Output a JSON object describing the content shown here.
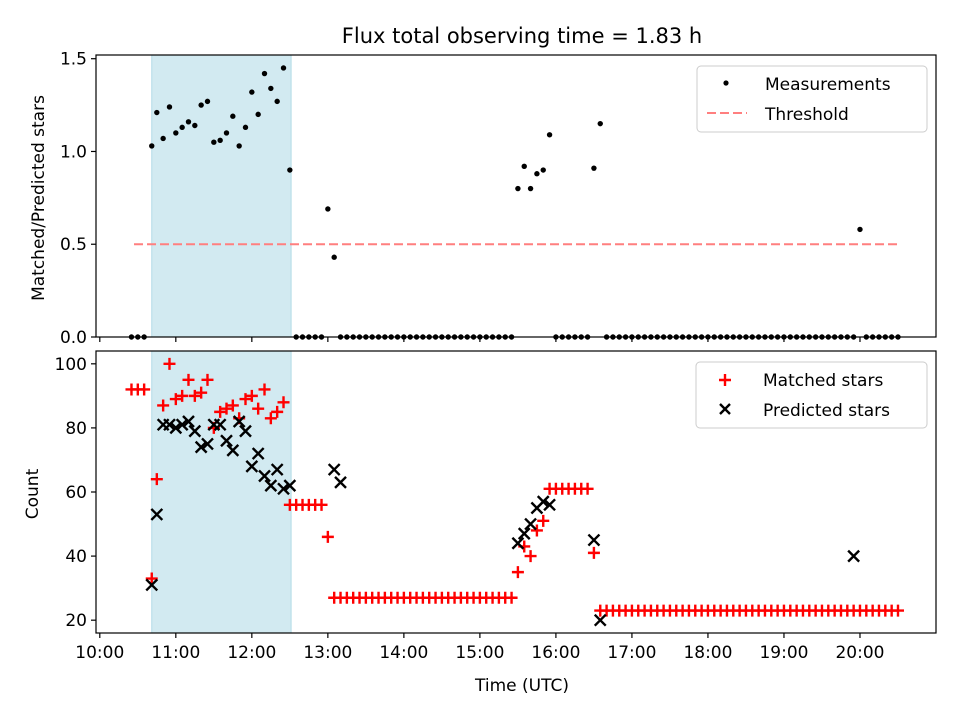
{
  "figure": {
    "title": "Flux total observing time = 1.83 h"
  },
  "chart_data": [
    {
      "type": "scatter",
      "ylabel": "Matched/Predicted stars",
      "xlabel": "",
      "x_ticks_visible": false,
      "ylim": [
        0,
        1.52
      ],
      "yticks": [
        0.0,
        0.5,
        1.0,
        1.5
      ],
      "ytick_labels": [
        "0.0",
        "0.5",
        "1.0",
        "1.5"
      ],
      "shaded_span": [
        "10:41",
        "12:31"
      ],
      "shaded_color": "#add8e6",
      "legend": {
        "position": "top-right",
        "entries": [
          "Measurements",
          "Threshold"
        ]
      },
      "threshold": {
        "name": "Threshold",
        "value": 0.5,
        "x_range": [
          "10:27",
          "20:30"
        ],
        "color": "#ff7f7f",
        "style": "dashed"
      },
      "series": [
        {
          "name": "Measurements",
          "color": "#000000",
          "marker": "dot",
          "x": [
            "10:25",
            "10:30",
            "10:35",
            "10:41",
            "10:45",
            "10:50",
            "10:55",
            "11:00",
            "11:05",
            "11:10",
            "11:15",
            "11:20",
            "11:25",
            "11:30",
            "11:35",
            "11:40",
            "11:45",
            "11:50",
            "11:55",
            "12:00",
            "12:05",
            "12:10",
            "12:15",
            "12:20",
            "12:25",
            "12:30",
            "12:35",
            "12:40",
            "12:45",
            "12:50",
            "12:55",
            "13:00",
            "13:05",
            "13:10",
            "13:15",
            "13:20",
            "13:25",
            "13:30",
            "13:35",
            "13:40",
            "13:45",
            "13:50",
            "13:55",
            "14:00",
            "14:05",
            "14:10",
            "14:15",
            "14:20",
            "14:25",
            "14:30",
            "14:35",
            "14:40",
            "14:45",
            "14:50",
            "14:55",
            "15:00",
            "15:05",
            "15:10",
            "15:15",
            "15:20",
            "15:25",
            "15:30",
            "15:35",
            "15:40",
            "15:45",
            "15:50",
            "15:55",
            "16:00",
            "16:05",
            "16:10",
            "16:15",
            "16:20",
            "16:25",
            "16:30",
            "16:35",
            "16:40",
            "16:45",
            "16:50",
            "16:55",
            "17:00",
            "17:05",
            "17:10",
            "17:15",
            "17:20",
            "17:25",
            "17:30",
            "17:35",
            "17:40",
            "17:45",
            "17:50",
            "17:55",
            "18:00",
            "18:05",
            "18:10",
            "18:15",
            "18:20",
            "18:25",
            "18:30",
            "18:35",
            "18:40",
            "18:45",
            "18:50",
            "18:55",
            "19:00",
            "19:05",
            "19:10",
            "19:15",
            "19:20",
            "19:25",
            "19:30",
            "19:35",
            "19:40",
            "19:45",
            "19:50",
            "19:55",
            "20:00",
            "20:05",
            "20:10",
            "20:15",
            "20:20",
            "20:25",
            "20:30"
          ],
          "y": [
            0,
            0,
            0,
            1.03,
            1.21,
            1.07,
            1.24,
            1.1,
            1.13,
            1.16,
            1.14,
            1.25,
            1.27,
            1.05,
            1.06,
            1.1,
            1.19,
            1.03,
            1.13,
            1.32,
            1.2,
            1.42,
            1.34,
            1.27,
            1.45,
            0.9,
            0,
            0,
            0,
            0,
            0,
            0.69,
            0.43,
            0,
            0,
            0,
            0,
            0,
            0,
            0,
            0,
            0,
            0,
            0,
            0,
            0,
            0,
            0,
            0,
            0,
            0,
            0,
            0,
            0,
            0,
            0,
            0,
            0,
            0,
            0,
            0,
            0.8,
            0.92,
            0.8,
            0.88,
            0.9,
            1.09,
            0,
            0,
            0,
            0,
            0,
            0,
            0.91,
            1.15,
            0,
            0,
            0,
            0,
            0,
            0,
            0,
            0,
            0,
            0,
            0,
            0,
            0,
            0,
            0,
            0,
            0,
            0,
            0,
            0,
            0,
            0,
            0,
            0,
            0,
            0,
            0,
            0,
            0,
            0,
            0,
            0,
            0,
            0,
            0,
            0,
            0,
            0,
            0,
            0,
            0.58,
            0,
            0,
            0,
            0,
            0,
            0
          ]
        }
      ]
    },
    {
      "type": "scatter",
      "ylabel": "Count",
      "xlabel": "Time (UTC)",
      "ylim": [
        16,
        104
      ],
      "yticks": [
        20,
        40,
        60,
        80,
        100
      ],
      "ytick_labels": [
        "20",
        "40",
        "60",
        "80",
        "100"
      ],
      "xlim": [
        "09:57",
        "21:00"
      ],
      "xticks": [
        "10:00",
        "11:00",
        "12:00",
        "13:00",
        "14:00",
        "15:00",
        "16:00",
        "17:00",
        "18:00",
        "19:00",
        "20:00"
      ],
      "xtick_labels": [
        "10:00",
        "11:00",
        "12:00",
        "13:00",
        "14:00",
        "15:00",
        "16:00",
        "17:00",
        "18:00",
        "19:00",
        "20:00"
      ],
      "shaded_span": [
        "10:41",
        "12:31"
      ],
      "shaded_color": "#add8e6",
      "legend": {
        "position": "top-right",
        "entries": [
          "Matched stars",
          "Predicted stars"
        ]
      },
      "series": [
        {
          "name": "Matched stars",
          "color": "#ff0000",
          "marker": "plus",
          "x": [
            "10:25",
            "10:30",
            "10:35",
            "10:41",
            "10:45",
            "10:50",
            "10:55",
            "11:00",
            "11:05",
            "11:10",
            "11:15",
            "11:20",
            "11:25",
            "11:30",
            "11:35",
            "11:40",
            "11:45",
            "11:50",
            "11:55",
            "12:00",
            "12:05",
            "12:10",
            "12:15",
            "12:20",
            "12:25",
            "12:30",
            "12:35",
            "12:40",
            "12:45",
            "12:50",
            "12:55",
            "13:00",
            "13:05",
            "13:10",
            "13:15",
            "13:20",
            "13:25",
            "13:30",
            "13:35",
            "13:40",
            "13:45",
            "13:50",
            "13:55",
            "14:00",
            "14:05",
            "14:10",
            "14:15",
            "14:20",
            "14:25",
            "14:30",
            "14:35",
            "14:40",
            "14:45",
            "14:50",
            "14:55",
            "15:00",
            "15:05",
            "15:10",
            "15:15",
            "15:20",
            "15:25",
            "15:30",
            "15:35",
            "15:40",
            "15:45",
            "15:50",
            "15:55",
            "16:00",
            "16:05",
            "16:10",
            "16:15",
            "16:20",
            "16:25",
            "16:30",
            "16:35",
            "16:40",
            "16:45",
            "16:50",
            "16:55",
            "17:00",
            "17:05",
            "17:10",
            "17:15",
            "17:20",
            "17:25",
            "17:30",
            "17:35",
            "17:40",
            "17:45",
            "17:50",
            "17:55",
            "18:00",
            "18:05",
            "18:10",
            "18:15",
            "18:20",
            "18:25",
            "18:30",
            "18:35",
            "18:40",
            "18:45",
            "18:50",
            "18:55",
            "19:00",
            "19:05",
            "19:10",
            "19:15",
            "19:20",
            "19:25",
            "19:30",
            "19:35",
            "19:40",
            "19:45",
            "19:50",
            "19:55",
            "20:00",
            "20:05",
            "20:10",
            "20:15",
            "20:20",
            "20:25",
            "20:30"
          ],
          "y": [
            92,
            92,
            92,
            33,
            64,
            87,
            100,
            89,
            90,
            95,
            90,
            91,
            95,
            80,
            85,
            86,
            87,
            83,
            89,
            90,
            86,
            92,
            83,
            85,
            88,
            56,
            56,
            56,
            56,
            56,
            56,
            46,
            27,
            27,
            27,
            27,
            27,
            27,
            27,
            27,
            27,
            27,
            27,
            27,
            27,
            27,
            27,
            27,
            27,
            27,
            27,
            27,
            27,
            27,
            27,
            27,
            27,
            27,
            27,
            27,
            27,
            35,
            43,
            40,
            48,
            51,
            61,
            61,
            61,
            61,
            61,
            61,
            61,
            41,
            23,
            23,
            23,
            23,
            23,
            23,
            23,
            23,
            23,
            23,
            23,
            23,
            23,
            23,
            23,
            23,
            23,
            23,
            23,
            23,
            23,
            23,
            23,
            23,
            23,
            23,
            23,
            23,
            23,
            23,
            23,
            23,
            23,
            23,
            23,
            23,
            23,
            23,
            23,
            23,
            23,
            23,
            23,
            23,
            23,
            23,
            23,
            23
          ]
        },
        {
          "name": "Predicted stars",
          "color": "#000000",
          "marker": "x",
          "x": [
            "10:41",
            "10:45",
            "10:50",
            "10:55",
            "11:00",
            "11:05",
            "11:10",
            "11:15",
            "11:20",
            "11:25",
            "11:30",
            "11:35",
            "11:40",
            "11:45",
            "11:50",
            "11:55",
            "12:00",
            "12:05",
            "12:10",
            "12:15",
            "12:20",
            "12:25",
            "12:30",
            "13:05",
            "13:10",
            "15:30",
            "15:35",
            "15:40",
            "15:45",
            "15:50",
            "15:55",
            "16:30",
            "16:35",
            "19:55"
          ],
          "y": [
            31,
            53,
            81,
            81,
            80,
            81,
            82,
            79,
            74,
            75,
            81,
            81,
            76,
            73,
            82,
            79,
            68,
            72,
            65,
            62,
            67,
            61,
            62,
            67,
            63,
            44,
            47,
            50,
            55,
            57,
            56,
            45,
            20,
            40
          ]
        }
      ]
    }
  ]
}
